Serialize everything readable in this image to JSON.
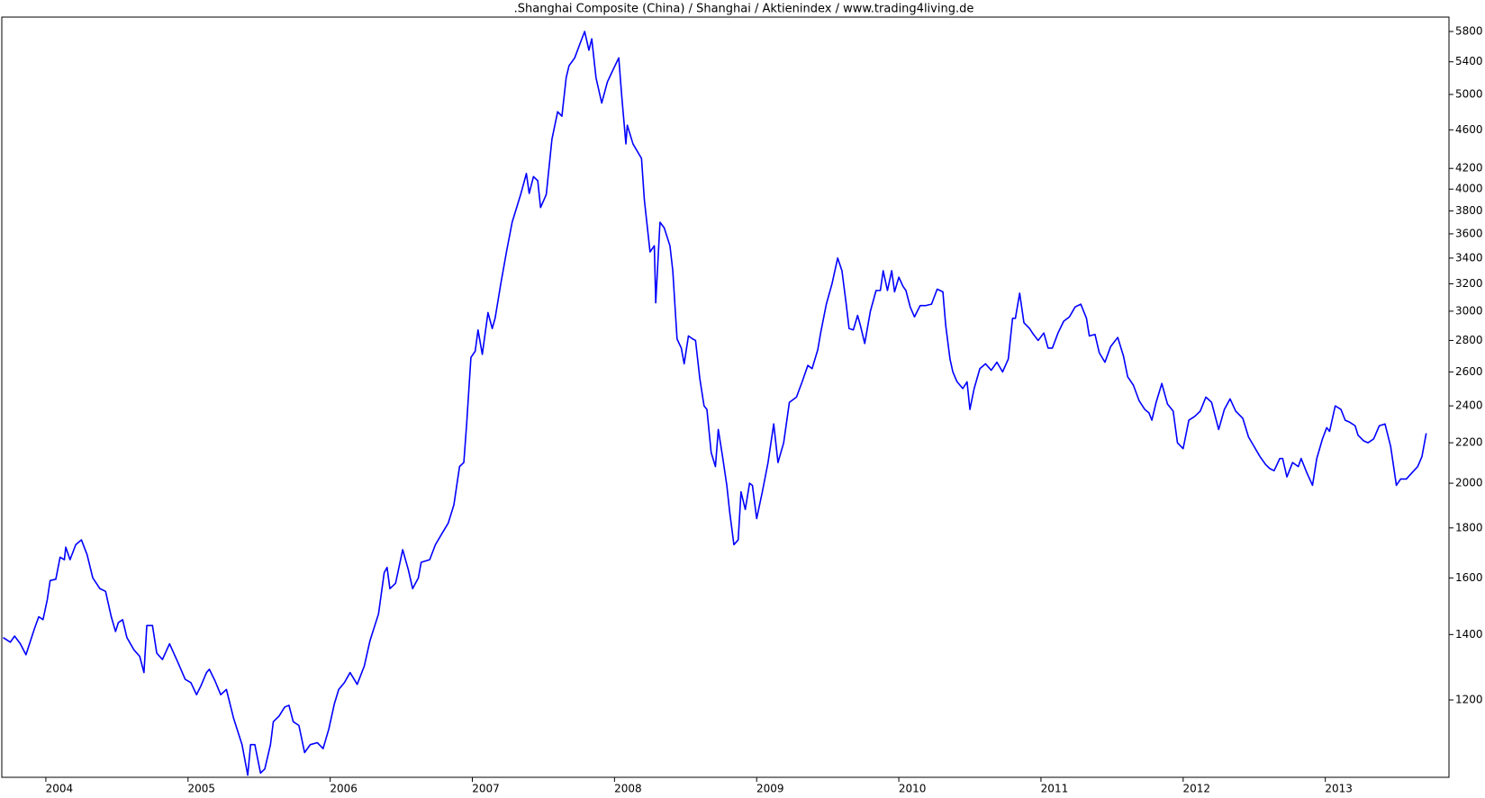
{
  "chart_data": {
    "type": "line",
    "title": ".Shanghai Composite (China) / Shanghai / Aktienindex / www.trading4living.de",
    "color": "#0000ff",
    "log_scale": true,
    "grid": false,
    "xlim": [
      2003.69,
      2013.87
    ],
    "xticks": [
      2004,
      2005,
      2006,
      2007,
      2008,
      2009,
      2010,
      2011,
      2012,
      2013
    ],
    "ylim": [
      1000,
      6000
    ],
    "yticks": [
      1200,
      1400,
      1600,
      1800,
      2000,
      2200,
      2400,
      2600,
      2800,
      3000,
      3200,
      3400,
      3600,
      3800,
      4000,
      4200,
      4600,
      5000,
      5400,
      5800
    ],
    "x": [
      2003.7,
      2003.75,
      2003.78,
      2003.82,
      2003.86,
      2003.92,
      2003.95,
      2003.98,
      2004.01,
      2004.03,
      2004.07,
      2004.1,
      2004.13,
      2004.14,
      2004.17,
      2004.21,
      2004.25,
      2004.29,
      2004.33,
      2004.38,
      2004.42,
      2004.46,
      2004.49,
      2004.51,
      2004.54,
      2004.57,
      2004.62,
      2004.66,
      2004.69,
      2004.71,
      2004.75,
      2004.78,
      2004.82,
      2004.87,
      2004.93,
      2004.98,
      2005.02,
      2005.06,
      2005.09,
      2005.13,
      2005.15,
      2005.19,
      2005.23,
      2005.27,
      2005.32,
      2005.38,
      2005.42,
      2005.44,
      2005.47,
      2005.51,
      2005.54,
      2005.58,
      2005.6,
      2005.64,
      2005.68,
      2005.71,
      2005.74,
      2005.78,
      2005.82,
      2005.86,
      2005.91,
      2005.95,
      2005.99,
      2006.03,
      2006.06,
      2006.1,
      2006.14,
      2006.19,
      2006.24,
      2006.28,
      2006.34,
      2006.38,
      2006.4,
      2006.42,
      2006.46,
      2006.51,
      2006.55,
      2006.58,
      2006.62,
      2006.64,
      2006.7,
      2006.74,
      2006.79,
      2006.83,
      2006.87,
      2006.91,
      2006.94,
      2006.96,
      2006.99,
      2007.02,
      2007.04,
      2007.07,
      2007.11,
      2007.14,
      2007.16,
      2007.2,
      2007.24,
      2007.28,
      2007.34,
      2007.38,
      2007.4,
      2007.43,
      2007.46,
      2007.48,
      2007.52,
      2007.56,
      2007.6,
      2007.63,
      2007.66,
      2007.68,
      2007.72,
      2007.76,
      2007.79,
      2007.82,
      2007.84,
      2007.87,
      2007.91,
      2007.95,
      2007.99,
      2008.03,
      2008.05,
      2008.08,
      2008.09,
      2008.13,
      2008.19,
      2008.21,
      2008.25,
      2008.28,
      2008.29,
      2008.32,
      2008.35,
      2008.39,
      2008.41,
      2008.44,
      2008.47,
      2008.49,
      2008.52,
      2008.55,
      2008.57,
      2008.6,
      2008.63,
      2008.65,
      2008.68,
      2008.71,
      2008.73,
      2008.76,
      2008.79,
      2008.81,
      2008.84,
      2008.87,
      2008.89,
      2008.92,
      2008.95,
      2008.97,
      2009.0,
      2009.04,
      2009.08,
      2009.12,
      2009.15,
      2009.19,
      2009.23,
      2009.28,
      2009.32,
      2009.36,
      2009.39,
      2009.43,
      2009.45,
      2009.49,
      2009.53,
      2009.57,
      2009.6,
      2009.63,
      2009.65,
      2009.68,
      2009.71,
      2009.73,
      2009.76,
      2009.8,
      2009.84,
      2009.87,
      2009.89,
      2009.92,
      2009.95,
      2009.97,
      2010.0,
      2010.03,
      2010.05,
      2010.08,
      2010.11,
      2010.15,
      2010.19,
      2010.23,
      2010.27,
      2010.31,
      2010.33,
      2010.36,
      2010.38,
      2010.41,
      2010.45,
      2010.48,
      2010.5,
      2010.53,
      2010.57,
      2010.61,
      2010.65,
      2010.69,
      2010.73,
      2010.77,
      2010.8,
      2010.82,
      2010.85,
      2010.88,
      2010.92,
      2010.94,
      2010.98,
      2011.02,
      2011.05,
      2011.08,
      2011.12,
      2011.16,
      2011.2,
      2011.24,
      2011.28,
      2011.32,
      2011.34,
      2011.38,
      2011.41,
      2011.45,
      2011.49,
      2011.54,
      2011.58,
      2011.61,
      2011.65,
      2011.69,
      2011.73,
      2011.76,
      2011.78,
      2011.81,
      2011.85,
      2011.89,
      2011.93,
      2011.96,
      2012.0,
      2012.04,
      2012.08,
      2012.12,
      2012.16,
      2012.2,
      2012.25,
      2012.29,
      2012.33,
      2012.37,
      2012.42,
      2012.46,
      2012.5,
      2012.54,
      2012.58,
      2012.61,
      2012.64,
      2012.68,
      2012.7,
      2012.73,
      2012.77,
      2012.81,
      2012.83,
      2012.87,
      2012.91,
      2012.94,
      2012.98,
      2013.01,
      2013.03,
      2013.07,
      2013.11,
      2013.14,
      2013.17,
      2013.21,
      2013.23,
      2013.27,
      2013.3,
      2013.34,
      2013.38,
      2013.42,
      2013.46,
      2013.5,
      2013.53,
      2013.57,
      2013.61,
      2013.65,
      2013.68,
      2013.71
    ],
    "values": [
      1390,
      1375,
      1395,
      1370,
      1335,
      1420,
      1460,
      1450,
      1520,
      1590,
      1595,
      1680,
      1670,
      1720,
      1670,
      1730,
      1750,
      1690,
      1600,
      1560,
      1550,
      1460,
      1410,
      1440,
      1450,
      1390,
      1350,
      1330,
      1280,
      1430,
      1430,
      1340,
      1320,
      1370,
      1310,
      1260,
      1250,
      1215,
      1240,
      1280,
      1290,
      1255,
      1215,
      1230,
      1150,
      1080,
      1005,
      1080,
      1080,
      1010,
      1020,
      1080,
      1140,
      1155,
      1180,
      1185,
      1140,
      1130,
      1060,
      1080,
      1085,
      1070,
      1120,
      1190,
      1230,
      1250,
      1280,
      1245,
      1300,
      1380,
      1470,
      1620,
      1640,
      1560,
      1580,
      1710,
      1630,
      1560,
      1600,
      1660,
      1670,
      1730,
      1780,
      1820,
      1900,
      2080,
      2100,
      2300,
      2690,
      2730,
      2870,
      2710,
      2990,
      2880,
      2950,
      3200,
      3450,
      3700,
      3950,
      4150,
      3960,
      4120,
      4080,
      3830,
      3950,
      4500,
      4800,
      4750,
      5200,
      5350,
      5450,
      5650,
      5800,
      5550,
      5700,
      5200,
      4900,
      5150,
      5300,
      5450,
      5000,
      4450,
      4650,
      4450,
      4300,
      3900,
      3450,
      3500,
      3060,
      3700,
      3650,
      3500,
      3300,
      2810,
      2750,
      2650,
      2830,
      2810,
      2800,
      2560,
      2400,
      2380,
      2150,
      2080,
      2270,
      2130,
      1990,
      1870,
      1730,
      1750,
      1960,
      1880,
      2000,
      1990,
      1840,
      1960,
      2100,
      2300,
      2100,
      2200,
      2420,
      2450,
      2540,
      2640,
      2620,
      2740,
      2850,
      3050,
      3200,
      3400,
      3300,
      3050,
      2880,
      2870,
      2970,
      2900,
      2780,
      3000,
      3150,
      3150,
      3300,
      3150,
      3300,
      3140,
      3250,
      3180,
      3150,
      3030,
      2960,
      3040,
      3040,
      3050,
      3160,
      3140,
      2900,
      2680,
      2600,
      2540,
      2500,
      2540,
      2380,
      2500,
      2620,
      2650,
      2610,
      2660,
      2600,
      2680,
      2950,
      2950,
      3130,
      2920,
      2880,
      2850,
      2800,
      2850,
      2750,
      2750,
      2850,
      2930,
      2960,
      3030,
      3050,
      2950,
      2830,
      2840,
      2720,
      2660,
      2760,
      2820,
      2700,
      2570,
      2520,
      2430,
      2380,
      2360,
      2320,
      2420,
      2530,
      2410,
      2370,
      2200,
      2170,
      2320,
      2340,
      2370,
      2450,
      2420,
      2270,
      2380,
      2440,
      2370,
      2330,
      2230,
      2180,
      2130,
      2090,
      2070,
      2060,
      2120,
      2120,
      2030,
      2100,
      2080,
      2120,
      2050,
      1990,
      2120,
      2220,
      2280,
      2260,
      2400,
      2380,
      2320,
      2310,
      2290,
      2240,
      2210,
      2200,
      2220,
      2290,
      2300,
      2180,
      1990,
      2020,
      2020,
      2050,
      2080,
      2130,
      2250
    ]
  }
}
